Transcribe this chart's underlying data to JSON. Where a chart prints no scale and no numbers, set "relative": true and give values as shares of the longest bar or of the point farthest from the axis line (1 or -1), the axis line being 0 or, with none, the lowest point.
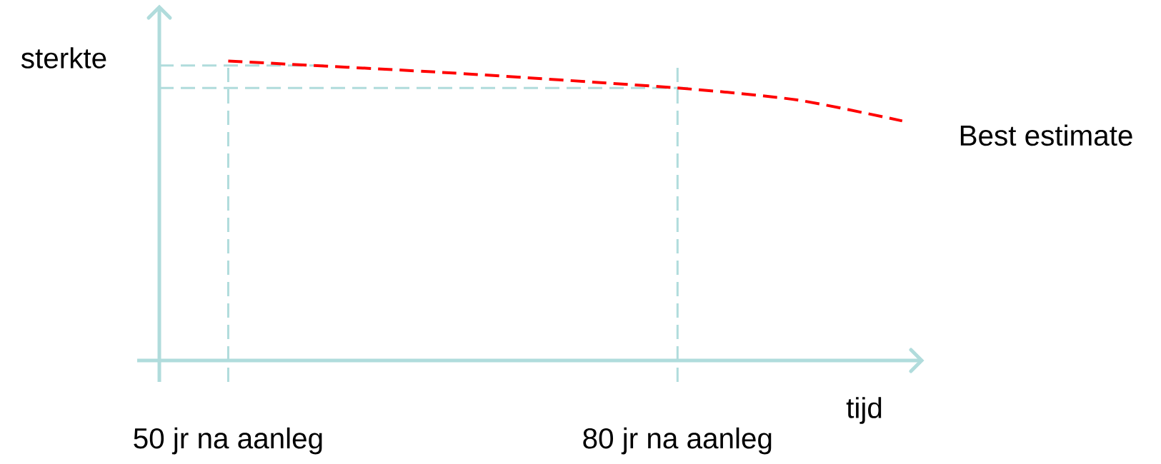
{
  "chart_data": {
    "type": "line",
    "relative": true,
    "xlabel": "tijd",
    "ylabel": "sterkte",
    "xlim": [
      45.4,
      96.3
    ],
    "xticks": [
      {
        "value": 50,
        "label": "50 jr na aanleg"
      },
      {
        "value": 80,
        "label": "80 jr na aanleg"
      }
    ],
    "x": [
      50,
      65,
      80,
      88,
      95
    ],
    "series": [
      {
        "name": "Best estimate",
        "color": "#ff0000",
        "values": [
          1,
          0.96,
          0.91,
          0.87,
          0.8
        ]
      }
    ],
    "line_style": "dashed",
    "marker": "none",
    "grid": false,
    "ref_lines": [
      {
        "axis": "x",
        "value": 50,
        "color": "#b0dcdc",
        "line_style": "dashed"
      },
      {
        "axis": "x",
        "value": 80,
        "color": "#b0dcdc",
        "line_style": "dashed"
      },
      {
        "axis": "y",
        "value": 0.985,
        "color": "#b0dcdc",
        "line_style": "dashed"
      },
      {
        "axis": "y",
        "value": 0.91,
        "color": "#b0dcdc",
        "line_style": "dashed"
      }
    ]
  }
}
